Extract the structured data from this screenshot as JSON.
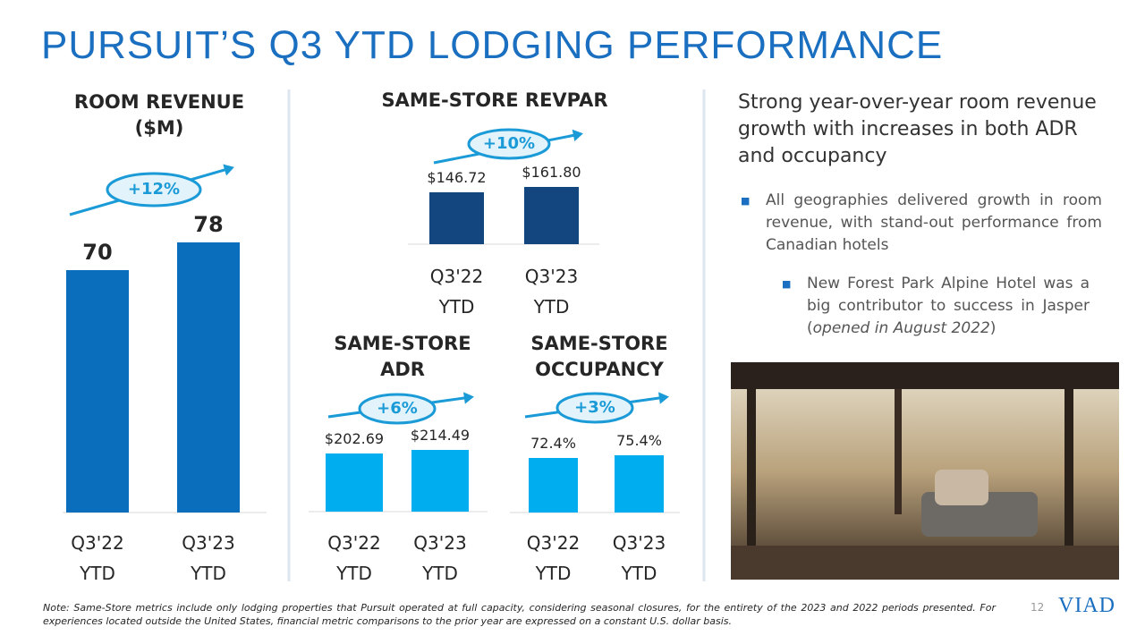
{
  "title": "PURSUIT’S Q3 YTD LODGING PERFORMANCE",
  "chart_data": [
    {
      "type": "bar",
      "title": "ROOM REVENUE ($M)",
      "categories": [
        "Q3'22 YTD",
        "Q3'23 YTD"
      ],
      "values": [
        70,
        78
      ],
      "color": "#0a6ebd",
      "annotation": "+12%"
    },
    {
      "type": "bar",
      "title": "SAME-STORE REVPAR",
      "categories": [
        "Q3'22 YTD",
        "Q3'23 YTD"
      ],
      "values": [
        146.72,
        161.8
      ],
      "value_labels": [
        "$146.72",
        "$161.80"
      ],
      "color": "#13457e",
      "annotation": "+10%"
    },
    {
      "type": "bar",
      "title": "SAME-STORE ADR",
      "categories": [
        "Q3'22 YTD",
        "Q3'23 YTD"
      ],
      "values": [
        202.69,
        214.49
      ],
      "value_labels": [
        "$202.69",
        "$214.49"
      ],
      "color": "#00adef",
      "annotation": "+6%"
    },
    {
      "type": "bar",
      "title": "SAME-STORE OCCUPANCY",
      "categories": [
        "Q3'22 YTD",
        "Q3'23 YTD"
      ],
      "values": [
        72.4,
        75.4
      ],
      "value_labels": [
        "72.4%",
        "75.4%"
      ],
      "color": "#00adef",
      "annotation": "+3%"
    }
  ],
  "summary": {
    "heading": "Strong year-over-year room revenue growth with increases in both ADR and occupancy",
    "bullet": "All geographies delivered growth in room revenue, with stand-out performance from Canadian hotels",
    "sub_bullet": [
      "New Forest Park Alpine Hotel was a big contributor to success in Jasper (",
      "opened in August 2022",
      ")"
    ]
  },
  "note": "Note: Same-Store metrics include only lodging properties that Pursuit operated at full capacity, considering seasonal closures, for the entirety of the 2023 and 2022 periods presented. For experiences located outside the United States, financial metric comparisons to the prior year are expressed on a constant U.S. dollar basis.",
  "page_number": "12",
  "logo": "VIAD"
}
